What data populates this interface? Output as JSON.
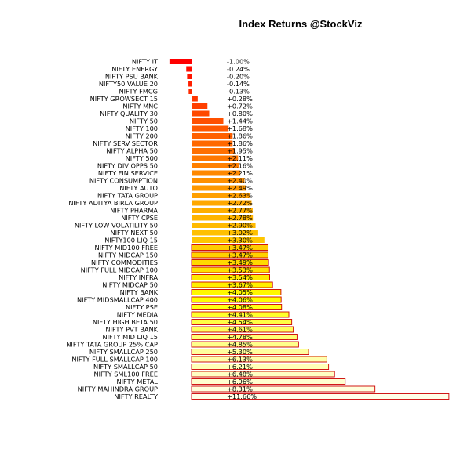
{
  "chart_data": {
    "type": "bar",
    "orientation": "horizontal",
    "title": "Index Returns @StockViz",
    "xlabel": "",
    "ylabel": "",
    "grid": false,
    "legend": "none",
    "unit": "%",
    "categories": [
      "NIFTY IT",
      "NIFTY ENERGY",
      "NIFTY PSU BANK",
      "NIFTY50 VALUE 20",
      "NIFTY FMCG",
      "NIFTY GROWSECT 15",
      "NIFTY MNC",
      "NIFTY QUALITY 30",
      "NIFTY 50",
      "NIFTY 100",
      "NIFTY 200",
      "NIFTY SERV SECTOR",
      "NIFTY ALPHA 50",
      "NIFTY 500",
      "NIFTY DIV OPPS 50",
      "NIFTY FIN SERVICE",
      "NIFTY CONSUMPTION",
      "NIFTY AUTO",
      "NIFTY TATA GROUP",
      "NIFTY ADITYA BIRLA GROUP",
      "NIFTY PHARMA",
      "NIFTY CPSE",
      "NIFTY LOW VOLATILITY 50",
      "NIFTY NEXT 50",
      "NIFTY100 LIQ 15",
      "NIFTY MID100 FREE",
      "NIFTY MIDCAP 150",
      "NIFTY COMMODITIES",
      "NIFTY FULL MIDCAP 100",
      "NIFTY INFRA",
      "NIFTY MIDCAP 50",
      "NIFTY BANK",
      "NIFTY MIDSMALLCAP 400",
      "NIFTY PSE",
      "NIFTY MEDIA",
      "NIFTY HIGH BETA 50",
      "NIFTY PVT BANK",
      "NIFTY MID LIQ 15",
      "NIFTY TATA GROUP 25% CAP",
      "NIFTY SMALLCAP 250",
      "NIFTY FULL SMALLCAP 100",
      "NIFTY SMALLCAP 50",
      "NIFTY SML100 FREE",
      "NIFTY METAL",
      "NIFTY MAHINDRA GROUP",
      "NIFTY REALTY"
    ],
    "values": [
      -1.0,
      -0.24,
      -0.2,
      -0.14,
      -0.13,
      0.28,
      0.72,
      0.8,
      1.44,
      1.68,
      1.86,
      1.86,
      1.95,
      2.11,
      2.16,
      2.21,
      2.4,
      2.49,
      2.63,
      2.72,
      2.77,
      2.78,
      2.9,
      3.02,
      3.3,
      3.47,
      3.47,
      3.49,
      3.53,
      3.54,
      3.67,
      4.05,
      4.06,
      4.08,
      4.41,
      4.54,
      4.61,
      4.78,
      4.85,
      5.3,
      6.13,
      6.21,
      6.48,
      6.96,
      8.31,
      11.66
    ],
    "value_labels": [
      "-1.00%",
      "-0.24%",
      "-0.20%",
      "-0.14%",
      "-0.13%",
      "+0.28%",
      "+0.72%",
      "+0.80%",
      "+1.44%",
      "+1.68%",
      "+1.86%",
      "+1.86%",
      "+1.95%",
      "+2.11%",
      "+2.16%",
      "+2.21%",
      "+2.40%",
      "+2.49%",
      "+2.63%",
      "+2.72%",
      "+2.77%",
      "+2.78%",
      "+2.90%",
      "+3.02%",
      "+3.30%",
      "+3.47%",
      "+3.47%",
      "+3.49%",
      "+3.53%",
      "+3.54%",
      "+3.67%",
      "+4.05%",
      "+4.06%",
      "+4.08%",
      "+4.41%",
      "+4.54%",
      "+4.61%",
      "+4.78%",
      "+4.85%",
      "+5.30%",
      "+6.13%",
      "+6.21%",
      "+6.48%",
      "+6.96%",
      "+8.31%",
      "+11.66%"
    ],
    "xlim": [
      -1.0,
      11.66
    ],
    "colors": [
      "#ff0000",
      "#ff4400",
      "#ff7700",
      "#ffaa00",
      "#ffd000",
      "#ffff00",
      "#ffff99",
      "#ffffe8"
    ],
    "bar_border_color": "#cc0000"
  }
}
